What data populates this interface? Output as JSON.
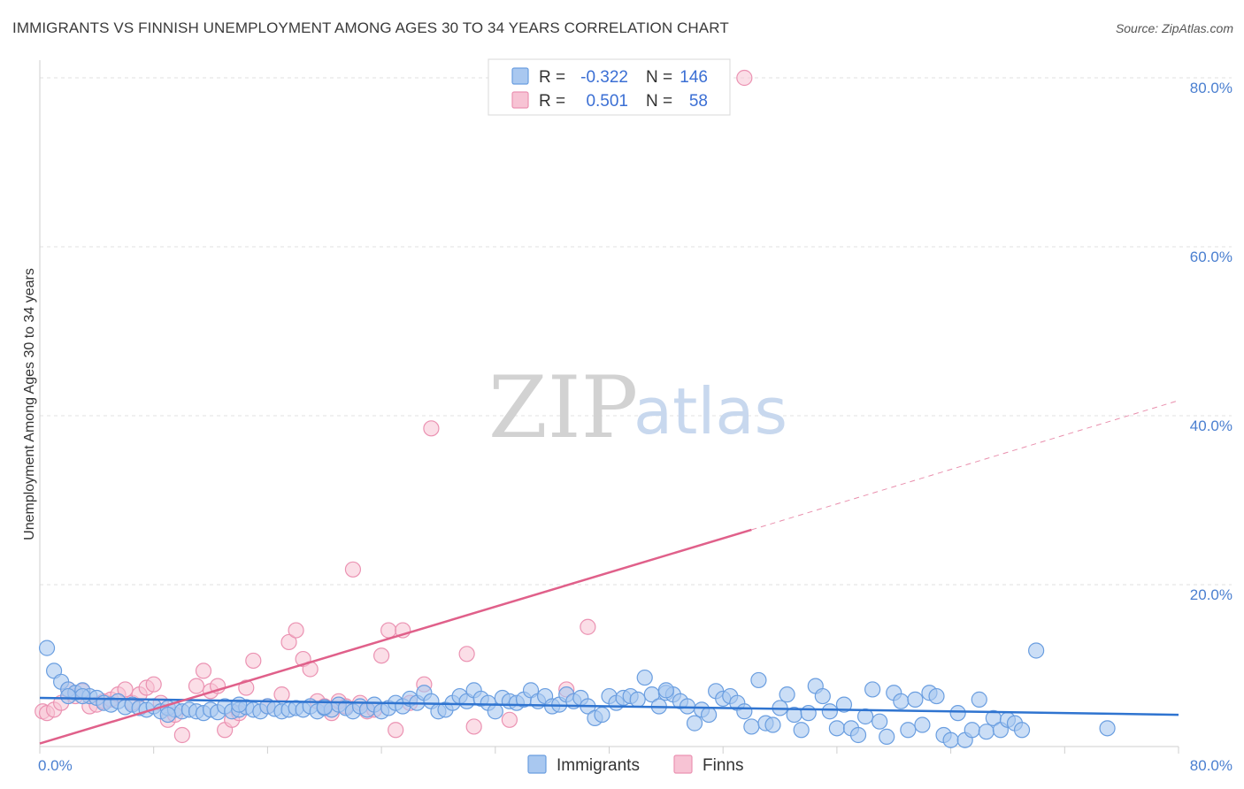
{
  "title": "IMMIGRANTS VS FINNISH UNEMPLOYMENT AMONG AGES 30 TO 34 YEARS CORRELATION CHART",
  "source": "Source: ZipAtlas.com",
  "watermark": {
    "zip": "ZIP",
    "atlas": "atlas"
  },
  "colors": {
    "immigrants_fill": "#a9c8f0",
    "immigrants_stroke": "#6a9ee0",
    "immigrants_line": "#2f74d0",
    "finns_fill": "#f7c3d4",
    "finns_stroke": "#eb92b2",
    "finns_line": "#e0608a",
    "grid": "#e2e2e2",
    "tick_label": "#4a7fd0"
  },
  "legend": {
    "rows": [
      {
        "r_label": "R =",
        "r_value": "-0.322",
        "n_label": "N =",
        "n_value": "146"
      },
      {
        "r_label": "R =",
        "r_value": "0.501",
        "n_label": "N =",
        "n_value": "58"
      }
    ]
  },
  "bottom_legend": [
    "Immigrants",
    "Finns"
  ],
  "chart_data": {
    "type": "scatter",
    "title": "IMMIGRANTS VS FINNISH UNEMPLOYMENT AMONG AGES 30 TO 34 YEARS CORRELATION CHART",
    "xlabel": "",
    "ylabel": "Unemployment Among Ages 30 to 34 years",
    "xlim": [
      0,
      80
    ],
    "ylim": [
      0,
      80
    ],
    "x_tick_labels": [
      "0.0%",
      "80.0%"
    ],
    "y_tick_values": [
      20,
      40,
      60,
      80
    ],
    "y_tick_labels": [
      "20.0%",
      "40.0%",
      "60.0%",
      "80.0%"
    ],
    "grid": true,
    "series": [
      {
        "name": "Immigrants",
        "r": -0.322,
        "n": 146,
        "trend": {
          "x0": 0,
          "y0": 6.6,
          "x1": 80,
          "y1": 4.6,
          "dashed_from": null
        },
        "points": [
          [
            0.5,
            12.5
          ],
          [
            1,
            9.8
          ],
          [
            1.5,
            8.5
          ],
          [
            2,
            7.6
          ],
          [
            2.5,
            7.2
          ],
          [
            3,
            7.5
          ],
          [
            3.5,
            6.8
          ],
          [
            4,
            6.6
          ],
          [
            4.5,
            6.0
          ],
          [
            5,
            5.8
          ],
          [
            5.5,
            6.2
          ],
          [
            6,
            5.5
          ],
          [
            6.5,
            5.8
          ],
          [
            7,
            5.4
          ],
          [
            7.5,
            5.2
          ],
          [
            8,
            5.6
          ],
          [
            8.5,
            5.0
          ],
          [
            9,
            5.4
          ],
          [
            9.5,
            5.2
          ],
          [
            10,
            5.0
          ],
          [
            10.5,
            5.2
          ],
          [
            11,
            5.0
          ],
          [
            11.5,
            4.8
          ],
          [
            12,
            5.2
          ],
          [
            12.5,
            4.9
          ],
          [
            13,
            5.6
          ],
          [
            13.5,
            5.0
          ],
          [
            14,
            5.2
          ],
          [
            14.5,
            5.5
          ],
          [
            15,
            5.2
          ],
          [
            15.5,
            5.0
          ],
          [
            16,
            5.6
          ],
          [
            16.5,
            5.3
          ],
          [
            17,
            5.0
          ],
          [
            17.5,
            5.2
          ],
          [
            18,
            5.4
          ],
          [
            18.5,
            5.2
          ],
          [
            19,
            5.6
          ],
          [
            19.5,
            5.0
          ],
          [
            20,
            5.4
          ],
          [
            20.5,
            5.2
          ],
          [
            21,
            5.8
          ],
          [
            21.5,
            5.4
          ],
          [
            22,
            5.0
          ],
          [
            22.5,
            5.6
          ],
          [
            23,
            5.2
          ],
          [
            23.5,
            5.8
          ],
          [
            24,
            5.0
          ],
          [
            24.5,
            5.4
          ],
          [
            25,
            6.0
          ],
          [
            25.5,
            5.6
          ],
          [
            26,
            6.5
          ],
          [
            26.5,
            6.0
          ],
          [
            27,
            7.2
          ],
          [
            27.5,
            6.2
          ],
          [
            28,
            5.0
          ],
          [
            28.5,
            5.2
          ],
          [
            29,
            6.0
          ],
          [
            29.5,
            6.8
          ],
          [
            30,
            6.2
          ],
          [
            30.5,
            7.5
          ],
          [
            31,
            6.5
          ],
          [
            31.5,
            6.0
          ],
          [
            32,
            5.0
          ],
          [
            32.5,
            6.6
          ],
          [
            33,
            6.2
          ],
          [
            33.5,
            6.0
          ],
          [
            34,
            6.4
          ],
          [
            34.5,
            7.5
          ],
          [
            35,
            6.2
          ],
          [
            35.5,
            6.8
          ],
          [
            36,
            5.6
          ],
          [
            36.5,
            5.8
          ],
          [
            37,
            7.0
          ],
          [
            37.5,
            6.2
          ],
          [
            38,
            6.6
          ],
          [
            38.5,
            5.6
          ],
          [
            39,
            4.2
          ],
          [
            39.5,
            4.6
          ],
          [
            40,
            6.8
          ],
          [
            40.5,
            6.0
          ],
          [
            41,
            6.6
          ],
          [
            41.5,
            6.8
          ],
          [
            42,
            6.4
          ],
          [
            42.5,
            9.0
          ],
          [
            43,
            7.0
          ],
          [
            43.5,
            5.6
          ],
          [
            44,
            7.2
          ],
          [
            44.5,
            7.0
          ],
          [
            45,
            6.2
          ],
          [
            45.5,
            5.6
          ],
          [
            46,
            3.6
          ],
          [
            46.5,
            5.2
          ],
          [
            47,
            4.6
          ],
          [
            47.5,
            7.4
          ],
          [
            48,
            6.5
          ],
          [
            48.5,
            6.8
          ],
          [
            49,
            6.0
          ],
          [
            49.5,
            5.0
          ],
          [
            50,
            3.2
          ],
          [
            50.5,
            8.7
          ],
          [
            51,
            3.6
          ],
          [
            51.5,
            3.4
          ],
          [
            52,
            5.4
          ],
          [
            52.5,
            7.0
          ],
          [
            53,
            4.6
          ],
          [
            53.5,
            2.8
          ],
          [
            54,
            4.8
          ],
          [
            54.5,
            8.0
          ],
          [
            55,
            6.8
          ],
          [
            55.5,
            5.0
          ],
          [
            56,
            3.0
          ],
          [
            56.5,
            5.8
          ],
          [
            57,
            3.0
          ],
          [
            57.5,
            2.2
          ],
          [
            58,
            4.4
          ],
          [
            58.5,
            7.6
          ],
          [
            59,
            3.8
          ],
          [
            59.5,
            2.0
          ],
          [
            60,
            7.2
          ],
          [
            60.5,
            6.2
          ],
          [
            61,
            2.8
          ],
          [
            61.5,
            6.4
          ],
          [
            62,
            3.4
          ],
          [
            62.5,
            7.2
          ],
          [
            63,
            6.8
          ],
          [
            63.5,
            2.2
          ],
          [
            64,
            1.6
          ],
          [
            64.5,
            4.8
          ],
          [
            65,
            1.6
          ],
          [
            65.5,
            2.8
          ],
          [
            66,
            6.4
          ],
          [
            66.5,
            2.6
          ],
          [
            67,
            4.2
          ],
          [
            67.5,
            2.8
          ],
          [
            68,
            4.0
          ],
          [
            68.5,
            3.6
          ],
          [
            69,
            2.8
          ],
          [
            70,
            12.2
          ],
          [
            75,
            3.0
          ],
          [
            44,
            7.5
          ],
          [
            20,
            5.5
          ],
          [
            3,
            6.8
          ],
          [
            9,
            4.6
          ],
          [
            14,
            5.8
          ],
          [
            2,
            6.8
          ]
        ]
      },
      {
        "name": "Finns",
        "r": 0.501,
        "n": 58,
        "trend": {
          "x0": 0,
          "y0": 1.2,
          "x1": 50,
          "y1": 26.5,
          "x2": 80,
          "y2": 41.8,
          "dashed_from": 50
        },
        "points": [
          [
            0.2,
            5.0
          ],
          [
            0.5,
            4.8
          ],
          [
            1,
            5.2
          ],
          [
            1.5,
            6.0
          ],
          [
            2,
            7.6
          ],
          [
            2.5,
            6.8
          ],
          [
            3,
            7.4
          ],
          [
            3.5,
            5.6
          ],
          [
            4,
            5.8
          ],
          [
            4.5,
            6.2
          ],
          [
            5,
            6.4
          ],
          [
            5.5,
            7.0
          ],
          [
            6,
            7.6
          ],
          [
            6.5,
            6.0
          ],
          [
            7,
            7.0
          ],
          [
            7.5,
            7.8
          ],
          [
            8,
            8.2
          ],
          [
            8.5,
            6.0
          ],
          [
            9,
            4.0
          ],
          [
            9.5,
            4.6
          ],
          [
            10,
            2.2
          ],
          [
            11,
            8.0
          ],
          [
            11.5,
            9.8
          ],
          [
            12,
            7.4
          ],
          [
            12.5,
            8.0
          ],
          [
            13,
            2.8
          ],
          [
            13.5,
            4.0
          ],
          [
            14,
            4.8
          ],
          [
            14.5,
            7.8
          ],
          [
            15,
            11.0
          ],
          [
            16,
            5.6
          ],
          [
            17,
            7.0
          ],
          [
            17.5,
            13.2
          ],
          [
            18,
            14.6
          ],
          [
            18.5,
            11.2
          ],
          [
            19,
            10.0
          ],
          [
            19.5,
            6.2
          ],
          [
            20,
            5.6
          ],
          [
            20.5,
            4.8
          ],
          [
            21,
            6.2
          ],
          [
            21.5,
            5.6
          ],
          [
            22,
            21.8
          ],
          [
            22.5,
            6.0
          ],
          [
            23,
            5.0
          ],
          [
            23.5,
            5.2
          ],
          [
            24,
            11.6
          ],
          [
            24.5,
            14.6
          ],
          [
            25,
            2.8
          ],
          [
            25.5,
            14.6
          ],
          [
            26,
            6.0
          ],
          [
            27,
            8.2
          ],
          [
            27.5,
            38.5
          ],
          [
            30,
            11.8
          ],
          [
            30.5,
            3.2
          ],
          [
            33,
            4.0
          ],
          [
            37,
            7.6
          ],
          [
            38.5,
            15.0
          ],
          [
            49.5,
            80.0
          ]
        ]
      }
    ]
  }
}
